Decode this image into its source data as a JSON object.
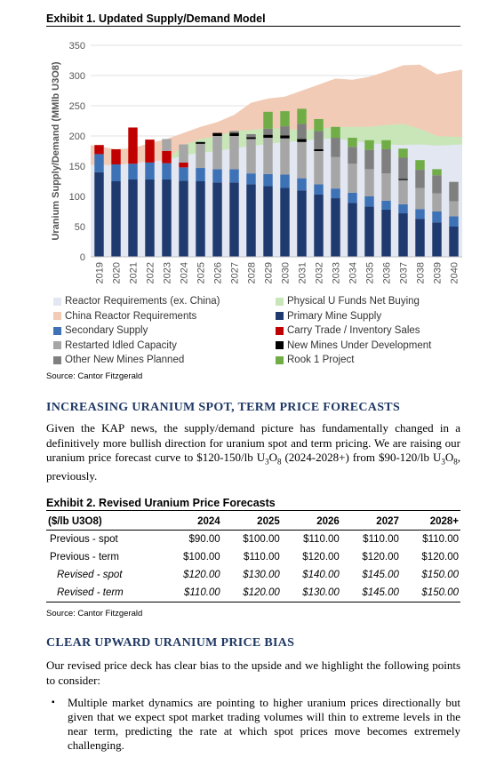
{
  "exhibit1": {
    "title": "Exhibit 1. Updated Supply/Demand Model",
    "source": "Source: Cantor Fitzgerald"
  },
  "chart_data": {
    "type": "bar",
    "ylabel": "Uranium Supply/Demand  (MMlb U3O8)",
    "ylim": [
      0,
      350
    ],
    "yticks": [
      0,
      50,
      100,
      150,
      200,
      250,
      300,
      350
    ],
    "grid": true,
    "legend_position": "bottom",
    "categories": [
      "2019",
      "2020",
      "2021",
      "2022",
      "2023",
      "2024",
      "2025",
      "2026",
      "2027",
      "2028",
      "2029",
      "2030",
      "2031",
      "2032",
      "2033",
      "2034",
      "2035",
      "2036",
      "2037",
      "2038",
      "2039",
      "2040"
    ],
    "areas": [
      {
        "name": "Reactor Requirements (ex. China)",
        "color": "#e3e7f1",
        "values": [
          152,
          152,
          155,
          158,
          160,
          168,
          172,
          175,
          180,
          183,
          187,
          190,
          192,
          195,
          196,
          192,
          188,
          186,
          185,
          186,
          184,
          186
        ]
      },
      {
        "name": "China Reactor Requirements",
        "color": "#f2cbb6",
        "values": [
          185,
          178,
          180,
          188,
          195,
          205,
          215,
          223,
          235,
          255,
          262,
          265,
          275,
          285,
          295,
          293,
          298,
          307,
          317,
          318,
          302,
          310
        ]
      },
      {
        "name": "Physical U Funds Net Buying",
        "color": "#c9e6b9",
        "values": [
          152,
          152,
          155,
          158,
          160,
          185,
          195,
          200,
          208,
          210,
          213,
          212,
          210,
          212,
          215,
          215,
          215,
          218,
          220,
          212,
          200,
          198
        ]
      }
    ],
    "stacked_series": [
      {
        "name": "Primary Mine Supply",
        "color": "#1f3a6e",
        "values": [
          140,
          125,
          128,
          128,
          128,
          126,
          125,
          123,
          123,
          120,
          117,
          114,
          110,
          103,
          97,
          89,
          83,
          78,
          72,
          63,
          57,
          50
        ]
      },
      {
        "name": "Secondary Supply",
        "color": "#3d72b6",
        "values": [
          30,
          28,
          26,
          28,
          27,
          22,
          22,
          22,
          22,
          18,
          20,
          22,
          20,
          17,
          16,
          17,
          17,
          15,
          15,
          16,
          18,
          17
        ]
      },
      {
        "name": "Carry Trade / Inventory Sales",
        "color": "#c00000",
        "values": [
          15,
          25,
          60,
          38,
          20,
          8,
          0,
          0,
          0,
          0,
          0,
          0,
          0,
          0,
          0,
          0,
          0,
          0,
          0,
          0,
          0,
          0
        ]
      },
      {
        "name": "Restarted Idled Capacity",
        "color": "#a6a6a6",
        "values": [
          0,
          0,
          0,
          0,
          20,
          30,
          40,
          55,
          55,
          57,
          60,
          60,
          60,
          55,
          52,
          48,
          45,
          45,
          40,
          35,
          30,
          25
        ]
      },
      {
        "name": "New Mines Under Development",
        "color": "#000000",
        "values": [
          0,
          0,
          0,
          0,
          0,
          0,
          3,
          5,
          5,
          3,
          5,
          5,
          5,
          3,
          0,
          0,
          0,
          0,
          2,
          0,
          0,
          0
        ]
      },
      {
        "name": "Other New Mines Planned",
        "color": "#7f7f7f",
        "values": [
          0,
          0,
          0,
          0,
          0,
          0,
          0,
          0,
          3,
          5,
          10,
          15,
          25,
          30,
          32,
          28,
          32,
          40,
          35,
          30,
          30,
          32
        ]
      },
      {
        "name": "Rook 1 Project",
        "color": "#70ad47",
        "values": [
          0,
          0,
          0,
          0,
          0,
          0,
          0,
          0,
          0,
          0,
          28,
          25,
          25,
          20,
          18,
          15,
          16,
          15,
          15,
          16,
          10,
          0
        ]
      }
    ],
    "legend": [
      {
        "label": "Reactor Requirements (ex. China)",
        "color": "#e3e7f1"
      },
      {
        "label": "Physical U Funds Net Buying",
        "color": "#c9e6b9"
      },
      {
        "label": "China Reactor Requirements",
        "color": "#f2cbb6"
      },
      {
        "label": "Primary Mine Supply",
        "color": "#1f3a6e"
      },
      {
        "label": "Secondary Supply",
        "color": "#3d72b6"
      },
      {
        "label": "Carry Trade / Inventory Sales",
        "color": "#c00000"
      },
      {
        "label": "Restarted Idled Capacity",
        "color": "#a6a6a6"
      },
      {
        "label": "New Mines Under Development",
        "color": "#000000"
      },
      {
        "label": "Other New Mines Planned",
        "color": "#7f7f7f"
      },
      {
        "label": "Rook 1 Project",
        "color": "#70ad47"
      }
    ]
  },
  "section1": {
    "heading": "INCREASING URANIUM SPOT, TERM PRICE FORECASTS",
    "para_a": "Given the KAP news, the supply/demand picture has fundamentally changed in a definitively more bullish direction for uranium spot and term pricing. We are raising our uranium price forecast curve to $120-150/lb U",
    "sub1": "3",
    "mid": "O",
    "sub2": "8",
    "para_b": " (2024-2028+) from $90-120/lb U",
    "sub3": "3",
    "mid2": "O",
    "sub4": "8",
    "para_c": ", previously."
  },
  "exhibit2": {
    "title": "Exhibit 2. Revised Uranium Price Forecasts",
    "columns": [
      "($/lb U3O8)",
      "2024",
      "2025",
      "2026",
      "2027",
      "2028+"
    ],
    "rows": [
      {
        "label": "Previous - spot",
        "values": [
          "$90.00",
          "$100.00",
          "$110.00",
          "$110.00",
          "$110.00"
        ]
      },
      {
        "label": "Previous - term",
        "values": [
          "$100.00",
          "$110.00",
          "$120.00",
          "$120.00",
          "$120.00"
        ]
      },
      {
        "label": "Revised - spot",
        "values": [
          "$120.00",
          "$130.00",
          "$140.00",
          "$145.00",
          "$150.00"
        ]
      },
      {
        "label": "Revised - term",
        "values": [
          "$110.00",
          "$120.00",
          "$130.00",
          "$145.00",
          "$150.00"
        ]
      }
    ],
    "source": "Source: Cantor Fitzgerald"
  },
  "section2": {
    "heading": "CLEAR UPWARD URANIUM PRICE BIAS",
    "intro": "Our revised price deck has clear bias to the upside and we highlight the following points to consider:",
    "bullet_mark": "▪",
    "bullet1": "Multiple market dynamics are pointing to higher uranium prices directionally but given that we expect spot market trading volumes will thin to extreme levels in the near term, predicting the rate at which spot prices move becomes extremely challenging."
  }
}
